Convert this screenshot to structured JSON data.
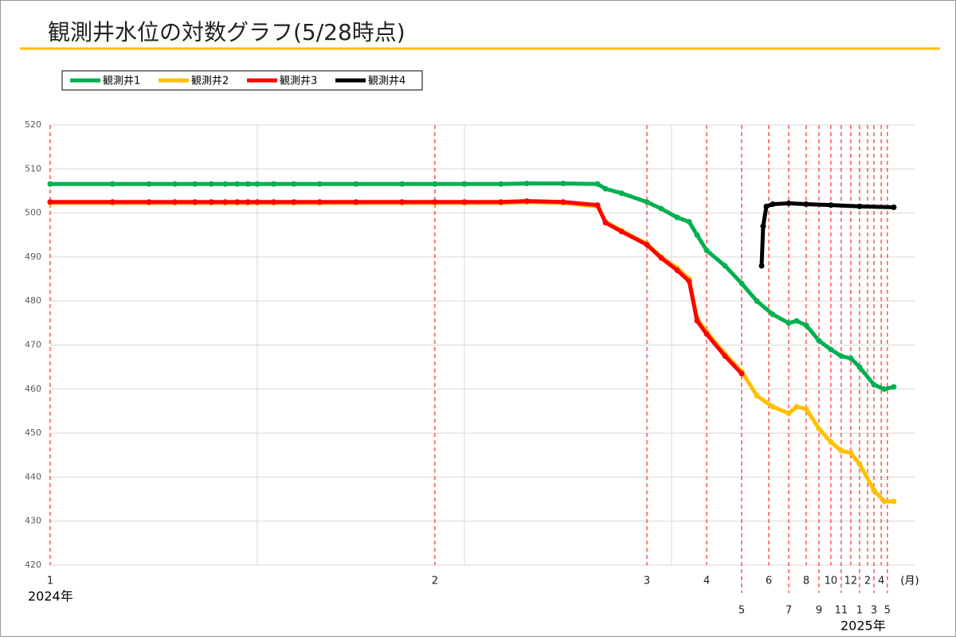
{
  "chart_data": {
    "type": "line",
    "title": "観測井水位の対数グラフ(5/28時点)",
    "x_log": true,
    "xlim": [
      1,
      14900
    ],
    "ylim": [
      420,
      520
    ],
    "yticks": [
      420,
      430,
      440,
      450,
      460,
      470,
      480,
      490,
      500,
      510,
      520
    ],
    "xgrid": [
      10,
      100,
      1000
    ],
    "grid": true,
    "xticks": [
      {
        "value": 1,
        "label": "1"
      },
      {
        "value": 72,
        "label": "2"
      },
      {
        "value": 760,
        "label": "3"
      },
      {
        "value": 1477,
        "label": "4"
      },
      {
        "value": 2180,
        "label": "5"
      },
      {
        "value": 2946,
        "label": "6"
      },
      {
        "value": 3677,
        "label": "7"
      },
      {
        "value": 4467,
        "label": "8"
      },
      {
        "value": 5148,
        "label": "9"
      },
      {
        "value": 5875,
        "label": "10"
      },
      {
        "value": 6592,
        "label": "11"
      },
      {
        "value": 7331,
        "label": "12"
      },
      {
        "value": 8083,
        "label": "1"
      },
      {
        "value": 8837,
        "label": "2"
      },
      {
        "value": 9484,
        "label": "3"
      },
      {
        "value": 10280,
        "label": "4"
      },
      {
        "value": 11020,
        "label": "5"
      }
    ],
    "x_unit": "(月)",
    "year_labels": [
      "2024年",
      "2025年"
    ],
    "series": [
      {
        "name": "観測井1",
        "color": "#00b050",
        "x": [
          1,
          2,
          3,
          4,
          5,
          6,
          7,
          8,
          9,
          10,
          12,
          15,
          20,
          30,
          50,
          72,
          100,
          150,
          200,
          300,
          439,
          480,
          573,
          760,
          891,
          1064,
          1216,
          1328,
          1477,
          1811,
          2180,
          2582,
          3076,
          3677,
          4017,
          4467,
          5148,
          5875,
          6592,
          7331,
          8083,
          9484,
          10640,
          11830
        ],
        "values": [
          506.6,
          506.6,
          506.6,
          506.6,
          506.6,
          506.6,
          506.6,
          506.6,
          506.6,
          506.6,
          506.6,
          506.6,
          506.6,
          506.6,
          506.6,
          506.6,
          506.6,
          506.6,
          506.7,
          506.7,
          506.6,
          505.5,
          504.5,
          502.5,
          501,
          499,
          498,
          495,
          491.5,
          488,
          484,
          480,
          477,
          475,
          475.5,
          474.5,
          471,
          469,
          467.5,
          467,
          465,
          461,
          460,
          460.5
        ]
      },
      {
        "name": "観測井2",
        "color": "#ffc000",
        "x": [
          1,
          2,
          3,
          4,
          5,
          6,
          7,
          8,
          9,
          10,
          12,
          15,
          20,
          30,
          50,
          72,
          100,
          150,
          200,
          300,
          439,
          480,
          573,
          760,
          891,
          1064,
          1216,
          1328,
          1477,
          1811,
          2180,
          2582,
          3076,
          3677,
          4017,
          4467,
          5148,
          5875,
          6592,
          7331,
          8083,
          9484,
          10640,
          11830
        ],
        "values": [
          502.3,
          502.3,
          502.3,
          502.3,
          502.3,
          502.3,
          502.3,
          502.3,
          502.3,
          502.3,
          502.3,
          502.3,
          502.3,
          502.3,
          502.3,
          502.3,
          502.3,
          502.3,
          502.5,
          502.3,
          501.5,
          498,
          496,
          493,
          490,
          487.5,
          485,
          476,
          473,
          468,
          464,
          458.5,
          456,
          454.5,
          456,
          455.5,
          451,
          448,
          446,
          445.5,
          443,
          437,
          434.5,
          434.5
        ]
      },
      {
        "name": "観測井3",
        "color": "#ff0000",
        "x": [
          1,
          2,
          3,
          4,
          5,
          6,
          7,
          8,
          9,
          10,
          12,
          15,
          20,
          30,
          50,
          72,
          100,
          150,
          200,
          300,
          439,
          480,
          573,
          760,
          891,
          1064,
          1216,
          1328,
          1477,
          1811,
          2180
        ],
        "values": [
          502.5,
          502.5,
          502.5,
          502.5,
          502.5,
          502.5,
          502.5,
          502.5,
          502.5,
          502.5,
          502.5,
          502.5,
          502.5,
          502.5,
          502.5,
          502.5,
          502.5,
          502.5,
          502.7,
          502.5,
          501.8,
          497.8,
          495.8,
          492.8,
          489.8,
          487,
          484.5,
          475.5,
          472.5,
          467.5,
          463.5
        ]
      },
      {
        "name": "観測井4",
        "color": "#000000",
        "x": [
          2721,
          2768,
          2869,
          3076,
          3677,
          4467,
          5875,
          8083,
          11830
        ],
        "values": [
          488,
          497,
          501.5,
          502,
          502.2,
          502,
          501.8,
          501.5,
          501.3
        ]
      }
    ]
  }
}
